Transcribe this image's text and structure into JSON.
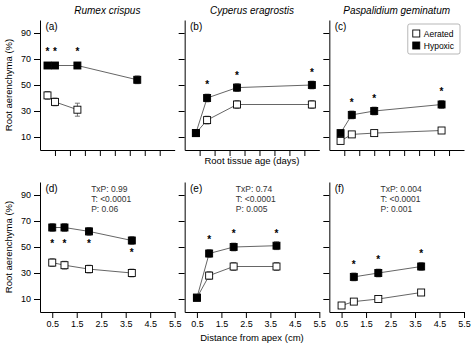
{
  "chart_data": [
    {
      "type": "line",
      "title": "Rumex crispus",
      "ylabel": "Root aerenchyma (%)",
      "x": [
        0.5,
        1.0,
        2.5,
        6.5
      ],
      "series": [
        {
          "values": [
            42,
            37,
            31,
            null
          ],
          "yerr": [
            3,
            3,
            5,
            null
          ],
          "color": "#666666",
          "marker": "square-open"
        },
        {
          "values": [
            65,
            65,
            65,
            54
          ],
          "yerr": [
            2,
            2,
            2,
            3
          ],
          "color": "#666666",
          "marker": "square"
        }
      ],
      "xlim": [
        0,
        9
      ],
      "xticks": [
        1,
        2,
        3,
        4,
        5,
        6,
        7,
        8
      ],
      "ylim": [
        0,
        100
      ],
      "yticks": [
        10,
        30,
        50,
        70,
        90
      ],
      "grid": false,
      "tick_labels": "y",
      "annotations": [
        {
          "text": "(a)"
        },
        {
          "text": "*",
          "x": 0.5,
          "y": 73
        },
        {
          "text": "*",
          "x": 1.0,
          "y": 73
        },
        {
          "text": "*",
          "x": 2.5,
          "y": 73
        }
      ]
    },
    {
      "type": "line",
      "title": "Cyperus eragrostis",
      "xlabel": "Root tissue age (days)",
      "x": [
        0.75,
        1.5,
        3.5,
        8.5
      ],
      "series": [
        {
          "values": [
            13,
            23,
            35,
            35
          ],
          "yerr": [
            2,
            3,
            3,
            3
          ],
          "color": "#666666",
          "marker": "square-open"
        },
        {
          "values": [
            13,
            40,
            48,
            50
          ],
          "yerr": [
            2,
            3,
            3,
            3
          ],
          "color": "#666666",
          "marker": "square"
        }
      ],
      "xlim": [
        0,
        9
      ],
      "xticks": [
        1,
        2,
        3,
        4,
        5,
        6,
        7,
        8
      ],
      "ylim": [
        0,
        100
      ],
      "yticks": [
        10,
        30,
        50,
        70,
        90
      ],
      "grid": false,
      "tick_labels": false,
      "annotations": [
        {
          "text": "(b)"
        },
        {
          "text": "*",
          "x": 1.5,
          "y": 48
        },
        {
          "text": "*",
          "x": 3.5,
          "y": 55
        },
        {
          "text": "*",
          "x": 8.5,
          "y": 57
        }
      ]
    },
    {
      "type": "line",
      "title": "Paspalidium geminatum",
      "x": [
        0.75,
        1.5,
        3.0,
        7.5
      ],
      "series": [
        {
          "name": "Aerated",
          "values": [
            7,
            12,
            13,
            15
          ],
          "yerr": [
            1,
            2,
            2,
            2
          ],
          "color": "#666666",
          "marker": "square-open"
        },
        {
          "name": "Hypoxic",
          "values": [
            13,
            27,
            30,
            35
          ],
          "yerr": [
            2,
            3,
            3,
            3
          ],
          "color": "#666666",
          "marker": "square"
        }
      ],
      "xlim": [
        0,
        9
      ],
      "xticks": [
        1,
        2,
        3,
        4,
        5,
        6,
        7,
        8
      ],
      "ylim": [
        0,
        100
      ],
      "yticks": [
        10,
        30,
        50,
        70,
        90
      ],
      "grid": false,
      "tick_labels": false,
      "legend": "upper right",
      "annotations": [
        {
          "text": "(c)"
        },
        {
          "text": "*",
          "x": 1.5,
          "y": 34
        },
        {
          "text": "*",
          "x": 3.0,
          "y": 37
        },
        {
          "text": "*",
          "x": 7.5,
          "y": 42
        }
      ]
    },
    {
      "type": "line",
      "ylabel": "Root aerenchyma (%)",
      "x": [
        0.5,
        1.0,
        2.0,
        3.75
      ],
      "series": [
        {
          "values": [
            38,
            36,
            33,
            30
          ],
          "yerr": [
            3,
            3,
            3,
            3
          ],
          "color": "#666666",
          "marker": "square-open"
        },
        {
          "values": [
            65,
            65,
            62,
            55
          ],
          "yerr": [
            3,
            3,
            3,
            3
          ],
          "color": "#666666",
          "marker": "square"
        }
      ],
      "xlim": [
        0,
        5.5
      ],
      "xticks": [
        0.5,
        1.5,
        2.5,
        3.5,
        4.5,
        5.5
      ],
      "ylim": [
        0,
        100
      ],
      "yticks": [
        10,
        30,
        50,
        70,
        90
      ],
      "grid": false,
      "annotations": [
        {
          "text": "(d)"
        },
        {
          "text": "TxP: 0.99"
        },
        {
          "text": "T: <0.0001"
        },
        {
          "text": "P: 0.06"
        },
        {
          "text": "*",
          "x": 0.5,
          "y": 50
        },
        {
          "text": "*",
          "x": 1.0,
          "y": 50
        },
        {
          "text": "*",
          "x": 2.0,
          "y": 50
        },
        {
          "text": "*",
          "x": 3.75,
          "y": 43
        }
      ]
    },
    {
      "type": "line",
      "xlabel": "Distance from apex (cm)",
      "x": [
        0.5,
        1.0,
        2.0,
        3.75
      ],
      "series": [
        {
          "values": [
            11,
            28,
            35,
            35
          ],
          "yerr": [
            2,
            3,
            3,
            3
          ],
          "color": "#666666",
          "marker": "square-open"
        },
        {
          "values": [
            11,
            45,
            50,
            51
          ],
          "yerr": [
            2,
            3,
            3,
            3
          ],
          "color": "#666666",
          "marker": "square"
        }
      ],
      "xlim": [
        0,
        5.5
      ],
      "xticks": [
        0.5,
        1.5,
        2.5,
        3.5,
        4.5,
        5.5
      ],
      "ylim": [
        0,
        100
      ],
      "yticks": [
        10,
        30,
        50,
        70,
        90
      ],
      "grid": false,
      "tick_labels": "x",
      "annotations": [
        {
          "text": "(e)"
        },
        {
          "text": "TxP: 0.74"
        },
        {
          "text": "T: <0.0001"
        },
        {
          "text": "P: 0.005"
        },
        {
          "text": "*",
          "x": 1.0,
          "y": 53
        },
        {
          "text": "*",
          "x": 2.0,
          "y": 58
        },
        {
          "text": "*",
          "x": 3.75,
          "y": 58
        }
      ]
    },
    {
      "type": "line",
      "x": [
        0.5,
        1.0,
        2.0,
        3.75
      ],
      "series": [
        {
          "values": [
            5,
            8,
            10,
            15
          ],
          "yerr": [
            1,
            2,
            2,
            2
          ],
          "color": "#666666",
          "marker": "square-open"
        },
        {
          "values": [
            null,
            27,
            30,
            35
          ],
          "yerr": [
            null,
            3,
            3,
            3
          ],
          "color": "#666666",
          "marker": "square"
        }
      ],
      "xlim": [
        0,
        5.5
      ],
      "xticks": [
        0.5,
        1.5,
        2.5,
        3.5,
        4.5,
        5.5
      ],
      "ylim": [
        0,
        100
      ],
      "yticks": [
        10,
        30,
        50,
        70,
        90
      ],
      "grid": false,
      "tick_labels": "x",
      "annotations": [
        {
          "text": "(f)"
        },
        {
          "text": "TxP: 0.004"
        },
        {
          "text": "T: <0.0001"
        },
        {
          "text": "P: 0.001"
        },
        {
          "text": "*",
          "x": 1.0,
          "y": 34
        },
        {
          "text": "*",
          "x": 2.0,
          "y": 38
        },
        {
          "text": "*",
          "x": 3.75,
          "y": 42
        }
      ]
    }
  ]
}
